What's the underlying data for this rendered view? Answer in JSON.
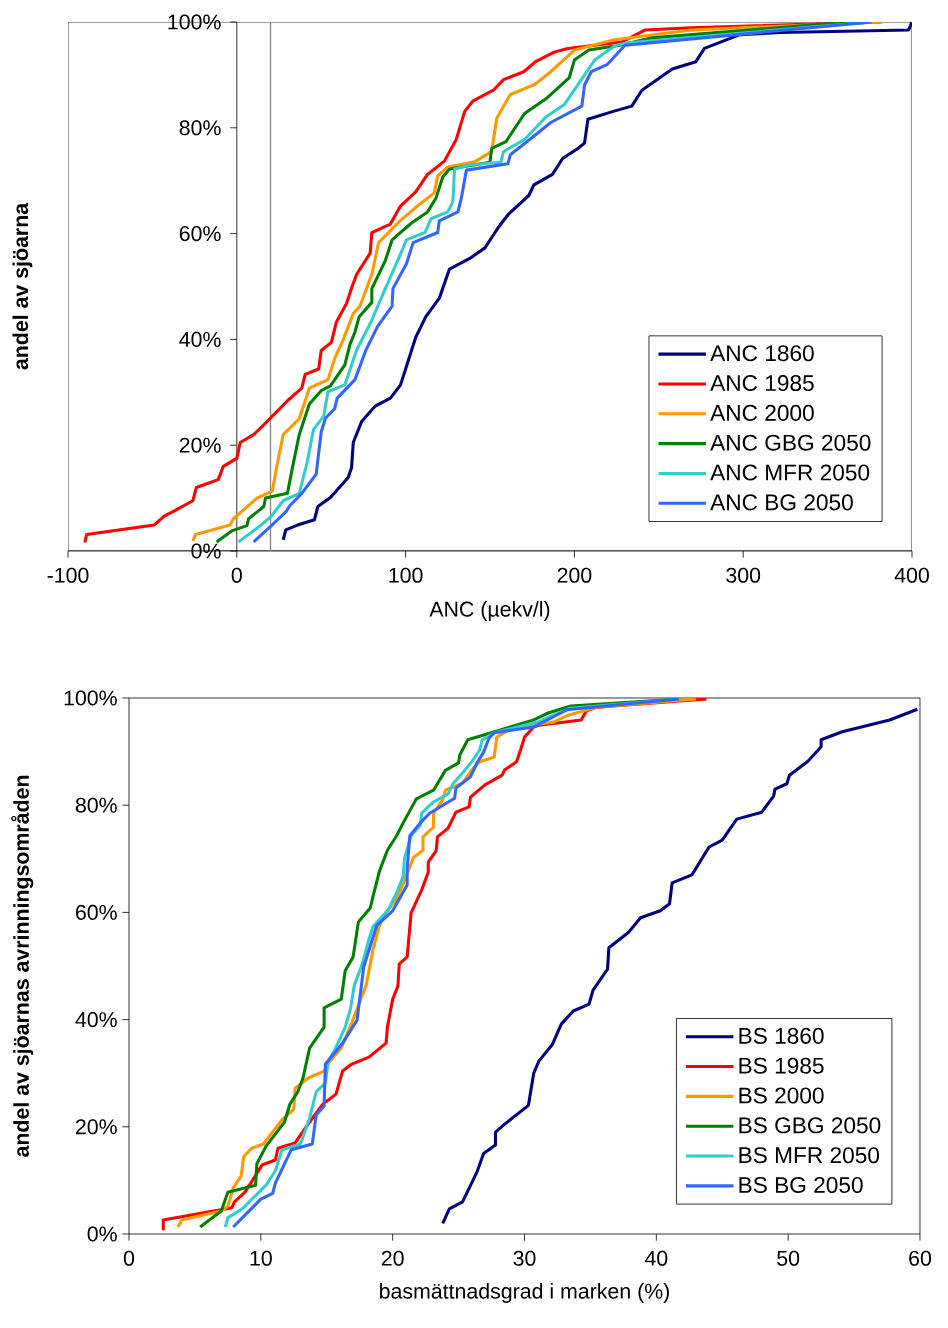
{
  "chart_data": [
    {
      "type": "line",
      "xlabel": "ANC (µekv/l)",
      "ylabel": "andel av sjöarna",
      "xlim": [
        -100,
        400
      ],
      "ylim": [
        0,
        100
      ],
      "xticks": [
        -100,
        0,
        100,
        200,
        300,
        400
      ],
      "yticks": [
        {
          "value": 0,
          "label": "0%"
        },
        {
          "value": 20,
          "label": "20%"
        },
        {
          "value": 40,
          "label": "40%"
        },
        {
          "value": 60,
          "label": "60%"
        },
        {
          "value": 80,
          "label": "80%"
        },
        {
          "value": 100,
          "label": "100%"
        }
      ],
      "legend": "bottom right",
      "ref_lines": [
        {
          "axis": "x",
          "value": 20,
          "color": "#808080"
        }
      ],
      "series": [
        {
          "name": "ANC 1860",
          "color": "#000080",
          "x": [
            27.5,
            29,
            36,
            46,
            48,
            55.5,
            66,
            68,
            69,
            74,
            82,
            91,
            97,
            100,
            106,
            112,
            120,
            126,
            138,
            147,
            155,
            161,
            173,
            176,
            187,
            193,
            202,
            206,
            208,
            223,
            234,
            240,
            249,
            258,
            272,
            277,
            298,
            322,
            398,
            400
          ],
          "values": [
            2.1,
            4,
            4.9,
            5.9,
            8.4,
            10.1,
            13.9,
            15.8,
            20.5,
            24.5,
            27.4,
            28.9,
            31.4,
            34.4,
            40.4,
            44.3,
            47.8,
            53.3,
            55.3,
            57.3,
            61.2,
            63.7,
            67.2,
            69.2,
            71.2,
            74.2,
            76.1,
            77.1,
            81.6,
            83.1,
            84.1,
            87.1,
            89.1,
            91.1,
            92.5,
            95,
            97.6,
            98,
            98.5,
            100
          ]
        },
        {
          "name": "ANC 1985",
          "color": "#ff0000",
          "x": [
            -90,
            -89,
            -49,
            -43,
            -37,
            -26,
            -24,
            -11,
            -8,
            0,
            2,
            10,
            18,
            30,
            38.5,
            40.5,
            48.5,
            50,
            56,
            59,
            65,
            68,
            71,
            79,
            80,
            91,
            97,
            106,
            113,
            123,
            130,
            135,
            140,
            152,
            158,
            170,
            177,
            188,
            196,
            228,
            242,
            269,
            382
          ],
          "values": [
            1.6,
            3.1,
            4.9,
            6.6,
            7.6,
            9.5,
            12,
            13.5,
            16,
            17.5,
            20.5,
            22,
            24.5,
            28.4,
            30.8,
            33.4,
            34.4,
            37.9,
            39.4,
            43.3,
            46.8,
            49.7,
            52.3,
            56.3,
            60.2,
            61.8,
            65.2,
            67.9,
            71.2,
            73.7,
            77.8,
            83.1,
            85.1,
            87.1,
            89.1,
            90.6,
            92.5,
            94.3,
            95,
            96.2,
            98.5,
            98.9,
            100
          ]
        },
        {
          "name": "ANC 2000",
          "color": "#ff9900",
          "x": [
            -26,
            -24.5,
            -4,
            -2,
            12,
            21,
            24,
            27.5,
            37,
            43,
            54,
            58,
            63,
            69,
            73,
            80,
            84,
            96,
            107,
            117,
            119,
            125,
            141,
            151,
            154,
            162,
            176,
            186,
            200,
            223,
            269,
            382
          ],
          "values": [
            1.9,
            3.1,
            4.9,
            6.1,
            10,
            11.3,
            16.5,
            22,
            25,
            30.8,
            32.4,
            36.4,
            39.9,
            44.9,
            46.3,
            52.3,
            58.3,
            62.2,
            65.2,
            67.7,
            70.9,
            72.6,
            73.6,
            75.5,
            81.8,
            86.3,
            88.1,
            90.6,
            94.7,
            96.6,
            98.5,
            100
          ]
        },
        {
          "name": "ANC GBG 2050",
          "color": "#008000",
          "x": [
            -12,
            -3,
            6,
            7,
            16,
            17,
            30,
            33,
            37,
            43,
            50,
            55.5,
            64,
            67,
            70,
            72.5,
            80,
            80,
            88,
            92,
            103.5,
            113,
            118,
            122,
            126,
            150,
            151,
            159.5,
            170.5,
            184,
            197,
            200,
            208.5,
            227,
            246,
            363
          ],
          "values": [
            1.7,
            3.8,
            4.8,
            6.1,
            8.4,
            10,
            10.9,
            15.8,
            22,
            27.8,
            30.3,
            31.2,
            35.2,
            39,
            41.4,
            44.3,
            47,
            49.6,
            54.9,
            58.8,
            62,
            64.1,
            66.7,
            70.7,
            72.2,
            73.5,
            76.1,
            77.4,
            82.7,
            85.7,
            89.5,
            92.8,
            94.7,
            95.6,
            97,
            100
          ]
        },
        {
          "name": "ANC MFR 2050",
          "color": "#33cccc",
          "x": [
            1,
            14,
            20.5,
            27.5,
            37,
            41.5,
            45.5,
            51.5,
            54,
            64,
            71,
            79.5,
            88,
            96.4,
            100.5,
            111.5,
            115,
            125,
            128,
            129,
            138.5,
            156.5,
            158,
            170.5,
            183,
            194,
            202,
            212,
            224,
            230,
            376
          ],
          "values": [
            1.7,
            4.8,
            6.6,
            9.5,
            10.9,
            16.5,
            23,
            25.5,
            30.1,
            31.4,
            38,
            43.3,
            49.6,
            55.7,
            58.8,
            60.2,
            62.8,
            64.1,
            66,
            72.2,
            73,
            73.5,
            75.5,
            77.8,
            82,
            84.4,
            88.1,
            92.8,
            95.5,
            96,
            100
          ]
        },
        {
          "name": "ANC BG 2050",
          "color": "#3366ff",
          "x": [
            10,
            20.5,
            29,
            31.5,
            38.5,
            47,
            50,
            52.5,
            58,
            59.5,
            70,
            76.5,
            83.5,
            92,
            92.5,
            100.5,
            104.5,
            119,
            120,
            131,
            133,
            136,
            160.6,
            162,
            173.5,
            186,
            204.4,
            206,
            210,
            219.6,
            230,
            376
          ],
          "values": [
            1.7,
            4.8,
            7.4,
            8.6,
            10.9,
            14.5,
            22.5,
            25.1,
            26.9,
            28.9,
            32.4,
            38,
            42.5,
            46.3,
            49.6,
            54.3,
            58.3,
            60.2,
            62.4,
            64.1,
            66.7,
            72,
            73.2,
            74.9,
            77.8,
            81,
            84.1,
            88.1,
            90.6,
            92,
            95.6,
            100
          ]
        }
      ]
    },
    {
      "type": "line",
      "xlabel": "basmättnadsgrad i marken (%)",
      "ylabel": "andel av sjöarnas avrinningsområden",
      "xlim": [
        0,
        60
      ],
      "ylim": [
        0,
        100
      ],
      "xticks": [
        0,
        10,
        20,
        30,
        40,
        50,
        60
      ],
      "yticks": [
        {
          "value": 0,
          "label": "0%"
        },
        {
          "value": 20,
          "label": "20%"
        },
        {
          "value": 40,
          "label": "40%"
        },
        {
          "value": 60,
          "label": "60%"
        },
        {
          "value": 80,
          "label": "80%"
        },
        {
          "value": 100,
          "label": "100%"
        }
      ],
      "legend": "bottom right",
      "series": [
        {
          "name": "BS 1860",
          "color": "#000080",
          "x": [
            23.8,
            24.3,
            25.3,
            26.4,
            26.9,
            27.8,
            27.8,
            28.5,
            30.3,
            30.7,
            31.1,
            32.1,
            32.8,
            33.7,
            34.9,
            35.2,
            36.3,
            36.4,
            37.9,
            38.8,
            40.3,
            41,
            41.2,
            42.7,
            44,
            45,
            46.1,
            48,
            48.9,
            49,
            49.9,
            50.1,
            51.5,
            52.5,
            52.5,
            54.1,
            57.7,
            59.8
          ],
          "values": [
            2,
            4.7,
            6,
            11.6,
            15,
            16.6,
            19,
            20.5,
            24,
            30,
            32.3,
            35.3,
            39.2,
            41.6,
            42.9,
            45.5,
            49.4,
            53.4,
            56.3,
            59,
            60.3,
            61.6,
            65.5,
            67,
            72.2,
            73.5,
            77.4,
            78.7,
            81.7,
            83,
            84,
            85.6,
            88.2,
            90.9,
            92.2,
            93.7,
            95.9,
            97.9
          ]
        },
        {
          "name": "BS 1985",
          "color": "#ff0000",
          "x": [
            2.6,
            2.6,
            7.8,
            8,
            8.8,
            10.1,
            11.1,
            11.3,
            12.6,
            13.7,
            14.7,
            15.7,
            16.2,
            16.9,
            18.2,
            19.5,
            19.6,
            20,
            20.4,
            20.5,
            21.1,
            21.4,
            22.2,
            22.7,
            22.7,
            23.3,
            23.4,
            24.2,
            24.8,
            25.8,
            25.9,
            27,
            28.3,
            28.5,
            29.4,
            29.7,
            30,
            30.7,
            31.1,
            34.3,
            34.7,
            35.5,
            43.8
          ],
          "values": [
            0.7,
            2.6,
            4.9,
            6,
            7.8,
            12.9,
            13.8,
            16,
            17,
            20.9,
            24.2,
            26.1,
            30.4,
            31.7,
            33,
            35.6,
            38.6,
            43.8,
            46.3,
            50.4,
            51.7,
            59.9,
            64.2,
            67.5,
            69.4,
            71.5,
            74.1,
            75.7,
            78.7,
            79.7,
            81.5,
            83.8,
            85.6,
            86.6,
            88.1,
            90.3,
            92.7,
            94.6,
            94.9,
            95.9,
            97.6,
            98.3,
            99.8
          ]
        },
        {
          "name": "BS 2000",
          "color": "#ff9900",
          "x": [
            3.7,
            4,
            7,
            7.5,
            7.9,
            8.5,
            8.7,
            9.3,
            10.2,
            11.6,
            12.5,
            12.6,
            13.6,
            14.8,
            15.2,
            16.1,
            16.9,
            18,
            18.5,
            19,
            19.6,
            20.3,
            20.6,
            21.6,
            22.3,
            22.3,
            23.1,
            23.1,
            23.8,
            24,
            25.3,
            26,
            26.6,
            27.7,
            27.9,
            29.2,
            32.2,
            33.3,
            35.5,
            43
          ],
          "values": [
            1.3,
            2.6,
            4.3,
            5.2,
            8.6,
            10.8,
            14.4,
            16,
            16.8,
            21.3,
            23.3,
            27.2,
            29.1,
            30.4,
            32.1,
            34.7,
            39.4,
            46.5,
            53,
            57.6,
            60.3,
            62.5,
            64.2,
            70.3,
            71.6,
            74.1,
            75.9,
            78.5,
            81,
            82.8,
            84.1,
            86.6,
            88.1,
            89,
            92.7,
            94.6,
            95.5,
            96.8,
            98.3,
            99.8
          ]
        },
        {
          "name": "BS GBG 2050",
          "color": "#008000",
          "x": [
            5.4,
            7,
            7.5,
            9.6,
            9.7,
            10.4,
            11.8,
            12.2,
            12.8,
            13.2,
            13.7,
            14.8,
            14.8,
            16.1,
            16.4,
            17,
            17.4,
            18.3,
            18.5,
            19,
            19.6,
            20.3,
            20.8,
            21.8,
            23.1,
            24,
            25,
            25.1,
            25.7,
            30.7,
            31.8,
            33.5,
            41.7
          ],
          "values": [
            1.3,
            4.3,
            7.8,
            9.1,
            13.1,
            16.4,
            20.9,
            24.2,
            26.5,
            29.1,
            34.7,
            38.6,
            42.2,
            43.8,
            49.1,
            51.7,
            58.2,
            60.8,
            62.9,
            67.7,
            71.6,
            74.3,
            76.7,
            81.2,
            82.8,
            86.5,
            87.9,
            89.4,
            92.2,
            95.9,
            97.2,
            98.5,
            99.8
          ]
        },
        {
          "name": "BS MFR 2050",
          "color": "#33cccc",
          "x": [
            7.3,
            7.5,
            8.7,
            9.2,
            10.4,
            11.1,
            11.6,
            13,
            13.7,
            14.2,
            14.9,
            15.1,
            15.6,
            16.4,
            16.8,
            17.1,
            17.7,
            18.2,
            18.5,
            19.7,
            20.4,
            20.8,
            20.9,
            21.4,
            22.1,
            22.2,
            23.1,
            24.2,
            24.6,
            25.3,
            26,
            26.6,
            26.8,
            27.7,
            31,
            32.2,
            33.5,
            41.7
          ],
          "values": [
            1.3,
            3,
            4.9,
            6.2,
            9.1,
            11.8,
            15.7,
            16.8,
            21.6,
            26.5,
            28.2,
            32.1,
            34.3,
            38.6,
            42,
            46.5,
            50.4,
            55,
            57.3,
            60.6,
            64.2,
            66.8,
            70.1,
            74.3,
            76.3,
            78.5,
            80.6,
            82.1,
            84.1,
            86,
            88.1,
            90.3,
            92.2,
            93.5,
            95.5,
            96.8,
            98.1,
            99.8
          ]
        },
        {
          "name": "BS BG 2050",
          "color": "#3366ff",
          "x": [
            7.9,
            10,
            10.9,
            11.1,
            12.3,
            13.9,
            14.2,
            14.8,
            14.9,
            16.2,
            17.3,
            17.8,
            18.8,
            20,
            21.1,
            21.1,
            21.3,
            22.1,
            22.8,
            24.7,
            24.8,
            25.9,
            26.4,
            26.9,
            27.3,
            27.7,
            30.7,
            32.2,
            33.2,
            41.7
          ],
          "values": [
            1.3,
            6.5,
            7.6,
            9.5,
            15.7,
            16.8,
            22.2,
            23.9,
            31.7,
            35.6,
            39.9,
            49.8,
            57.6,
            60.3,
            65.1,
            68.1,
            74.3,
            76.7,
            78.5,
            81.3,
            83.2,
            85.3,
            87.9,
            89.9,
            92.5,
            93.5,
            94.6,
            96.5,
            97.8,
            99.8
          ]
        }
      ]
    }
  ]
}
